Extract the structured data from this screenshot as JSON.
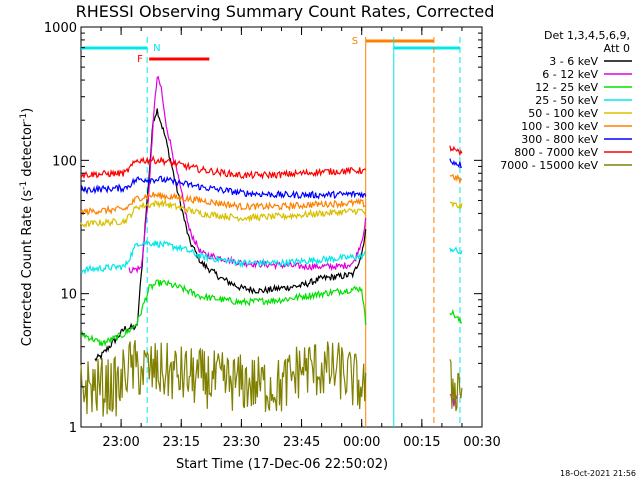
{
  "chart_data": {
    "type": "line",
    "title": "RHESSI Observing Summary Count Rates, Corrected",
    "ylabel_html": "Corrected Count Rate (s",
    "ylabel_sup": "-1",
    "ylabel_tail": " detector",
    "ylabel_end": ")",
    "xlabel": "Start Time (17-Dec-06 22:50:02)",
    "y_scale": "log",
    "ylim": [
      1,
      1000
    ],
    "xlim": [
      "22:50",
      "00:30"
    ],
    "x_ticks": [
      "23:00",
      "23:15",
      "23:30",
      "23:45",
      "00:00",
      "00:15",
      "00:30"
    ],
    "y_ticks": [
      "1",
      "10",
      "100",
      "1000"
    ],
    "legend_title": [
      "Det 1,3,4,5,6,9,",
      "Att 0"
    ],
    "legend_placement": "right",
    "series": [
      {
        "name": "3 - 6 keV",
        "color": "#000000",
        "points": [
          [
            3.5,
            3.2
          ],
          [
            5,
            3.4
          ],
          [
            11,
            5.5
          ],
          [
            14,
            5.6
          ],
          [
            17,
            80
          ],
          [
            18,
            200
          ],
          [
            19,
            240
          ],
          [
            21,
            150
          ],
          [
            24,
            60
          ],
          [
            27,
            25
          ],
          [
            30,
            17
          ],
          [
            35,
            13
          ],
          [
            40,
            11
          ],
          [
            45,
            10.5
          ],
          [
            50,
            11
          ],
          [
            55,
            11.5
          ],
          [
            60,
            13
          ],
          [
            65,
            13.5
          ],
          [
            68,
            14
          ],
          [
            70,
            20
          ],
          [
            71,
            30
          ]
        ]
      },
      {
        "name": "6 - 12 keV",
        "color": "#e000e0",
        "points": [
          [
            12,
            15
          ],
          [
            15,
            15.5
          ],
          [
            17,
            60
          ],
          [
            18,
            200
          ],
          [
            19,
            420
          ],
          [
            20,
            350
          ],
          [
            21,
            200
          ],
          [
            24,
            80
          ],
          [
            27,
            30
          ],
          [
            30,
            20
          ],
          [
            40,
            17
          ],
          [
            55,
            16
          ],
          [
            65,
            16
          ],
          [
            68,
            17
          ],
          [
            70,
            25
          ],
          [
            71,
            35
          ],
          [
            93,
            1.5
          ],
          [
            94,
            1.8
          ]
        ]
      },
      {
        "name": "12 - 25 keV",
        "color": "#00e000",
        "points": [
          [
            0,
            5
          ],
          [
            3.5,
            4.5
          ],
          [
            5,
            4.2
          ],
          [
            11,
            5
          ],
          [
            14,
            6
          ],
          [
            17,
            11
          ],
          [
            19,
            12
          ],
          [
            21,
            12
          ],
          [
            25,
            11
          ],
          [
            30,
            9.5
          ],
          [
            40,
            8.6
          ],
          [
            50,
            9
          ],
          [
            55,
            9.5
          ],
          [
            60,
            10
          ],
          [
            70,
            11
          ],
          [
            71,
            6
          ],
          [
            92,
            7.5
          ],
          [
            95,
            6
          ]
        ]
      },
      {
        "name": "25 - 50 keV",
        "color": "#00e8e8",
        "points": [
          [
            0,
            15
          ],
          [
            5,
            15.5
          ],
          [
            11,
            16
          ],
          [
            14,
            24
          ],
          [
            18,
            24
          ],
          [
            25,
            22
          ],
          [
            30,
            19
          ],
          [
            40,
            17
          ],
          [
            50,
            17
          ],
          [
            60,
            18
          ],
          [
            70,
            19
          ],
          [
            71,
            20
          ],
          [
            92,
            22
          ],
          [
            95,
            20
          ]
        ]
      },
      {
        "name": "50 - 100 keV",
        "color": "#d8c000",
        "points": [
          [
            0,
            33
          ],
          [
            5,
            34
          ],
          [
            11,
            35
          ],
          [
            14,
            45
          ],
          [
            20,
            48
          ],
          [
            30,
            40
          ],
          [
            40,
            37
          ],
          [
            50,
            38
          ],
          [
            60,
            40
          ],
          [
            70,
            42
          ],
          [
            71,
            40
          ],
          [
            92,
            47
          ],
          [
            95,
            45
          ]
        ]
      },
      {
        "name": "100 - 300 keV",
        "color": "#ff8000",
        "points": [
          [
            0,
            41
          ],
          [
            5,
            42
          ],
          [
            11,
            43
          ],
          [
            14,
            52
          ],
          [
            18,
            55
          ],
          [
            25,
            52
          ],
          [
            30,
            50
          ],
          [
            40,
            45
          ],
          [
            50,
            45
          ],
          [
            60,
            47
          ],
          [
            70,
            48
          ],
          [
            71,
            46
          ],
          [
            92,
            78
          ],
          [
            95,
            70
          ]
        ]
      },
      {
        "name": "300 - 800 keV",
        "color": "#0000ff",
        "points": [
          [
            0,
            60
          ],
          [
            11,
            62
          ],
          [
            14,
            72
          ],
          [
            20,
            72
          ],
          [
            30,
            63
          ],
          [
            40,
            57
          ],
          [
            50,
            55
          ],
          [
            60,
            55
          ],
          [
            70,
            56
          ],
          [
            71,
            54
          ],
          [
            92,
            100
          ],
          [
            95,
            92
          ]
        ]
      },
      {
        "name": "800 - 7000 keV",
        "color": "#ff0000",
        "points": [
          [
            0,
            78
          ],
          [
            11,
            80
          ],
          [
            14,
            100
          ],
          [
            20,
            100
          ],
          [
            30,
            85
          ],
          [
            40,
            77
          ],
          [
            50,
            78
          ],
          [
            60,
            82
          ],
          [
            70,
            84
          ],
          [
            71,
            82
          ],
          [
            92,
            125
          ],
          [
            95,
            110
          ]
        ]
      },
      {
        "name": "7000 - 15000 keV",
        "color": "#808000",
        "points": [
          [
            0,
            2.0
          ],
          [
            10,
            2.0
          ],
          [
            11,
            2.8
          ],
          [
            20,
            2.6
          ],
          [
            35,
            2.2
          ],
          [
            50,
            2.0
          ],
          [
            55,
            2.8
          ],
          [
            65,
            2.6
          ],
          [
            70,
            2.0
          ],
          [
            92,
            2.0
          ],
          [
            95,
            2.1
          ]
        ]
      }
    ],
    "annotations": [
      {
        "label": "N",
        "color": "#00e8e8",
        "x": 16.5
      },
      {
        "label": "F",
        "color": "#ff0000",
        "x": 16.5
      },
      {
        "label": "S",
        "color": "#ff8000",
        "x": 71
      }
    ],
    "bars": [
      {
        "name": "night",
        "color": "#00e8e8",
        "x0": 0,
        "x1": 16.5
      },
      {
        "name": "night",
        "color": "#00e8e8",
        "x0": 78,
        "x1": 94.5
      },
      {
        "name": "flare",
        "color": "#ff0000",
        "x0": 17,
        "x1": 32
      },
      {
        "name": "saa",
        "color": "#ff8000",
        "x0": 71,
        "x1": 88
      }
    ],
    "vlines": [
      {
        "x": 16.5,
        "color": "#00e8e8",
        "style": "dashed"
      },
      {
        "x": 71,
        "color": "#ff8000",
        "style": "solid"
      },
      {
        "x": 78,
        "color": "#00e8e8",
        "style": "solid"
      },
      {
        "x": 88,
        "color": "#ff8000",
        "style": "dashed"
      },
      {
        "x": 94.5,
        "color": "#00e8e8",
        "style": "dashed"
      }
    ]
  },
  "footer": {
    "date_stamp": "18-Oct-2021 21:56"
  }
}
